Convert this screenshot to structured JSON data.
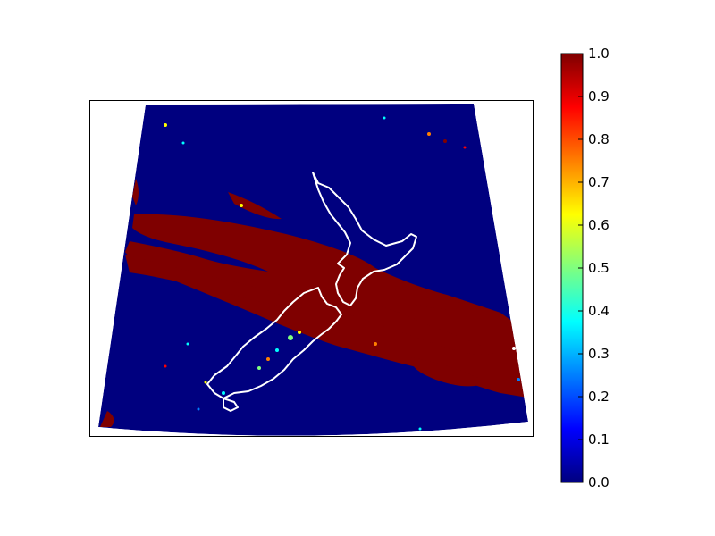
{
  "map": {
    "projection": "conic",
    "land_outline_color": "#ffffff",
    "ocean_color": "#00007f",
    "feature_color": "#7f0000"
  },
  "colorbar": {
    "colormap": "jet",
    "range": [
      0.0,
      1.0
    ],
    "ticks": [
      "0.0",
      "0.1",
      "0.2",
      "0.3",
      "0.4",
      "0.5",
      "0.6",
      "0.7",
      "0.8",
      "0.9",
      "1.0"
    ],
    "stops": [
      "#00007f",
      "#0000ff",
      "#007fff",
      "#00ffff",
      "#7fff7f",
      "#ffff00",
      "#ff7f00",
      "#ff0000",
      "#7f0000"
    ]
  }
}
